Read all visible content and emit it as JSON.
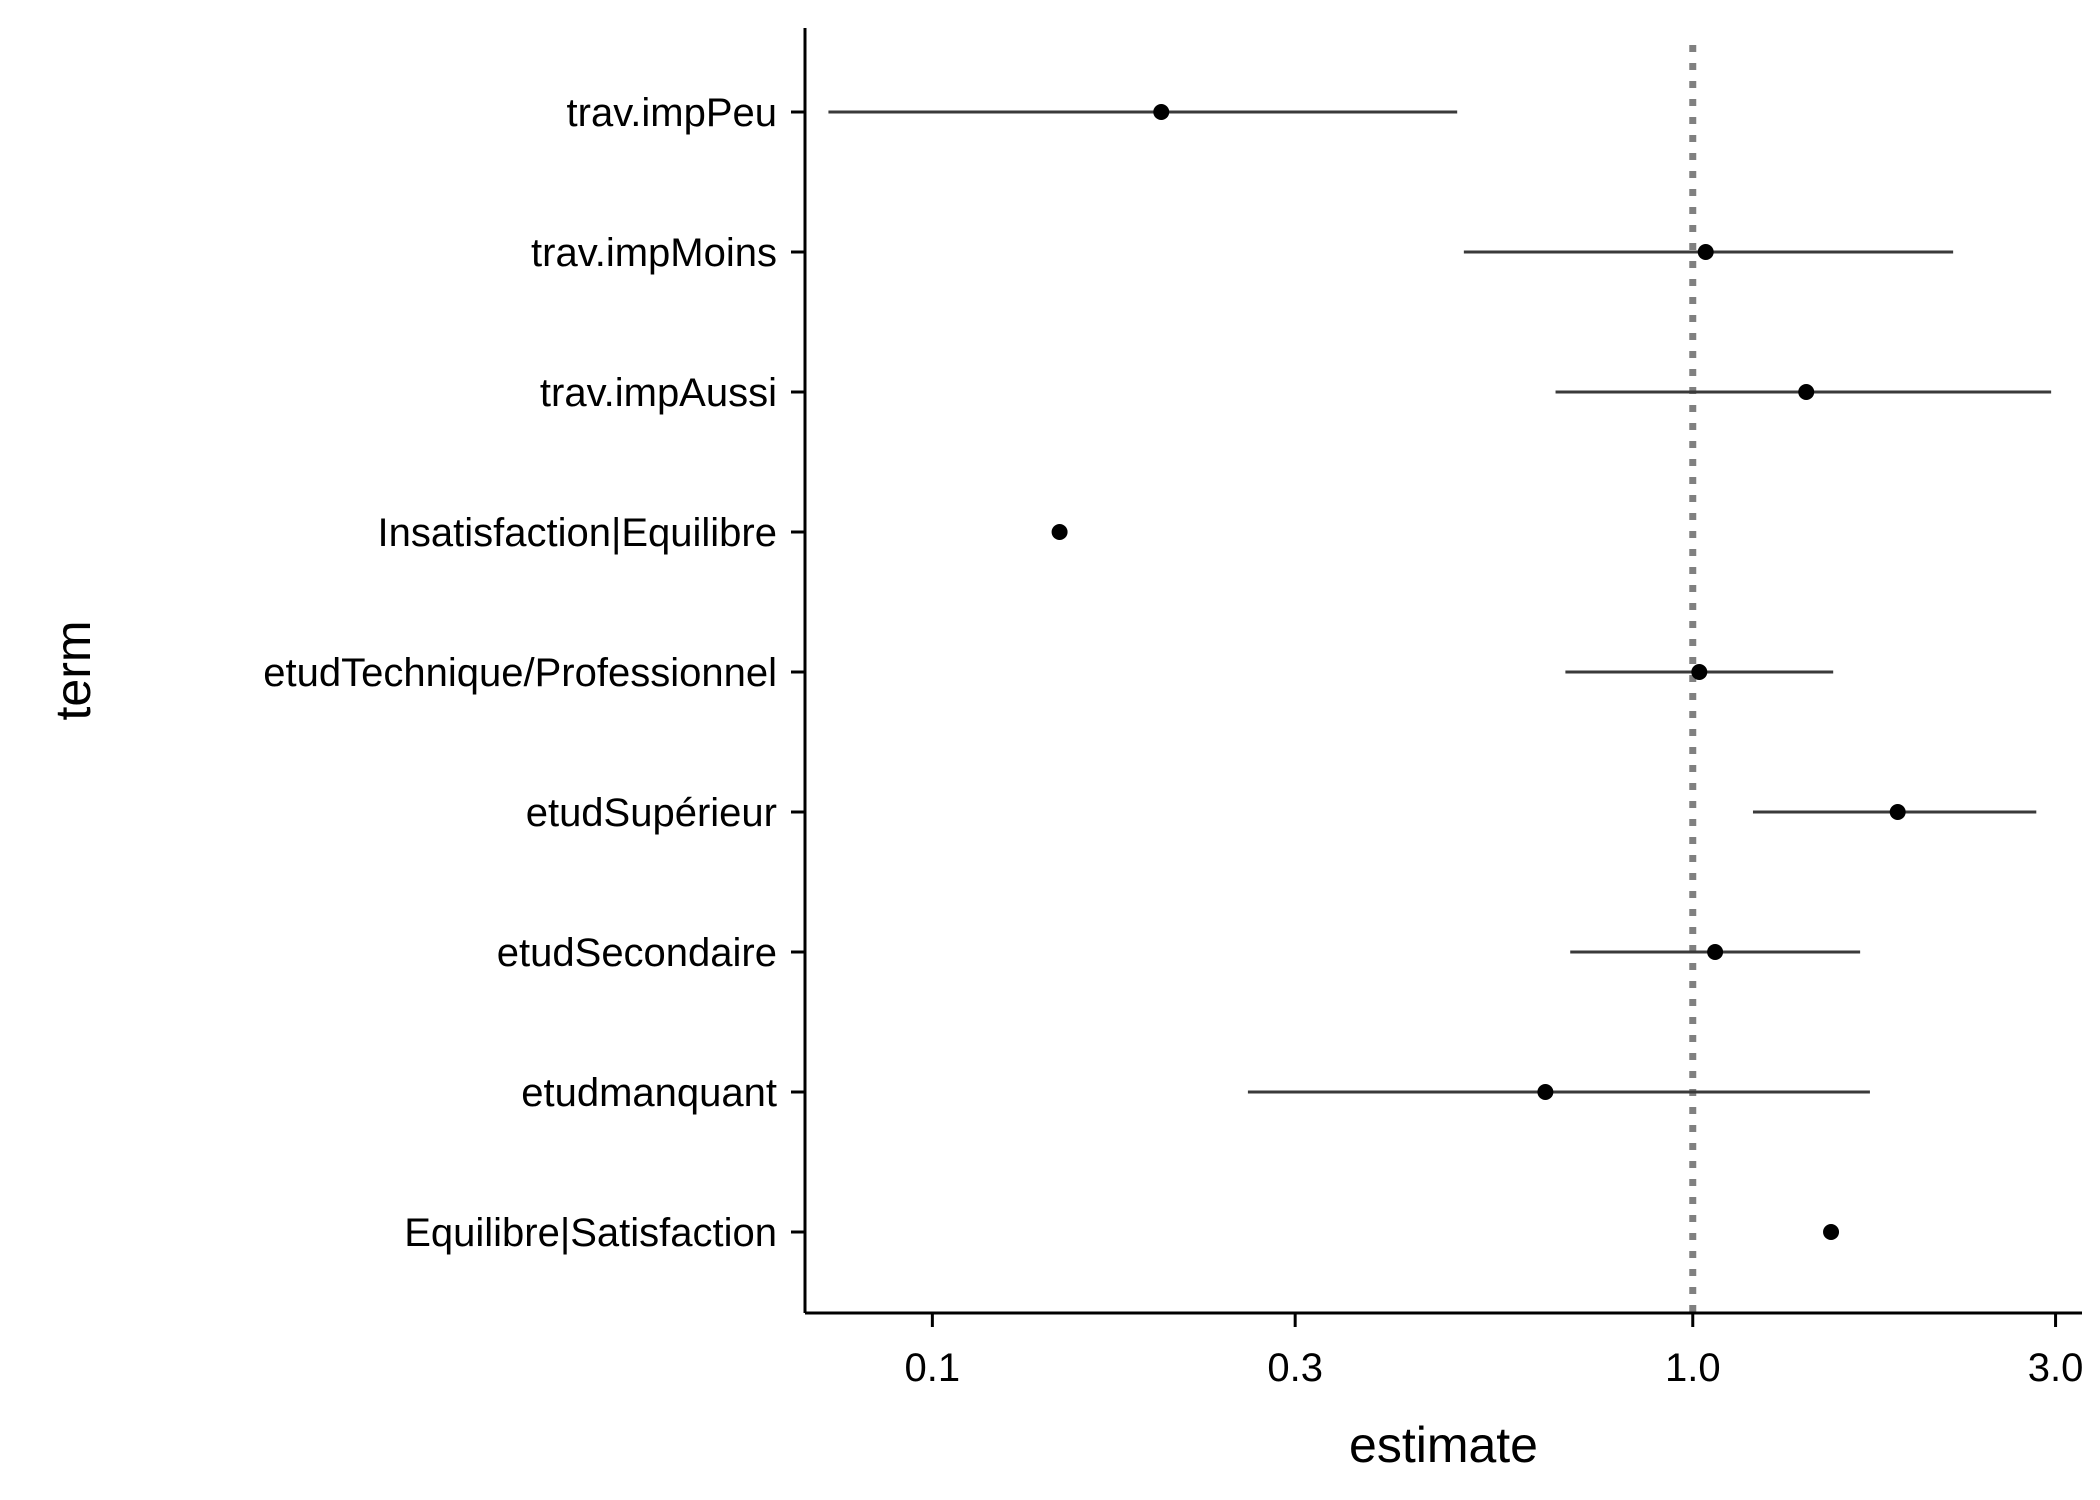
{
  "chart_data": {
    "type": "scatter",
    "xlabel": "estimate",
    "ylabel": "term",
    "x_scale": "log10",
    "xlim": [
      0.068,
      3.25
    ],
    "x_ticks": [
      {
        "value": 0.1,
        "label": "0.1"
      },
      {
        "value": 0.3,
        "label": "0.3"
      },
      {
        "value": 1.0,
        "label": "1.0"
      },
      {
        "value": 3.0,
        "label": "3.0"
      }
    ],
    "reference_line": {
      "x": 1.0,
      "style": "dotted",
      "color": "#808080"
    },
    "grid": false,
    "legend": "none",
    "point_color": "#000000",
    "interval_color": "#3a3a3a",
    "terms": [
      {
        "term": "trav.impPeu",
        "estimate": 0.2,
        "conf_low": 0.073,
        "conf_high": 0.49
      },
      {
        "term": "trav.impMoins",
        "estimate": 1.04,
        "conf_low": 0.5,
        "conf_high": 2.2
      },
      {
        "term": "trav.impAussi",
        "estimate": 1.41,
        "conf_low": 0.66,
        "conf_high": 2.96
      },
      {
        "term": "Insatisfaction|Equilibre",
        "estimate": 0.147,
        "conf_low": null,
        "conf_high": null
      },
      {
        "term": "etudTechnique/Professionnel",
        "estimate": 1.02,
        "conf_low": 0.68,
        "conf_high": 1.53
      },
      {
        "term": "etudSupérieur",
        "estimate": 1.86,
        "conf_low": 1.2,
        "conf_high": 2.83
      },
      {
        "term": "etudSecondaire",
        "estimate": 1.07,
        "conf_low": 0.69,
        "conf_high": 1.66
      },
      {
        "term": "etudmanquant",
        "estimate": 0.64,
        "conf_low": 0.26,
        "conf_high": 1.71
      },
      {
        "term": "Equilibre|Satisfaction",
        "estimate": 1.52,
        "conf_low": null,
        "conf_high": null
      }
    ]
  }
}
